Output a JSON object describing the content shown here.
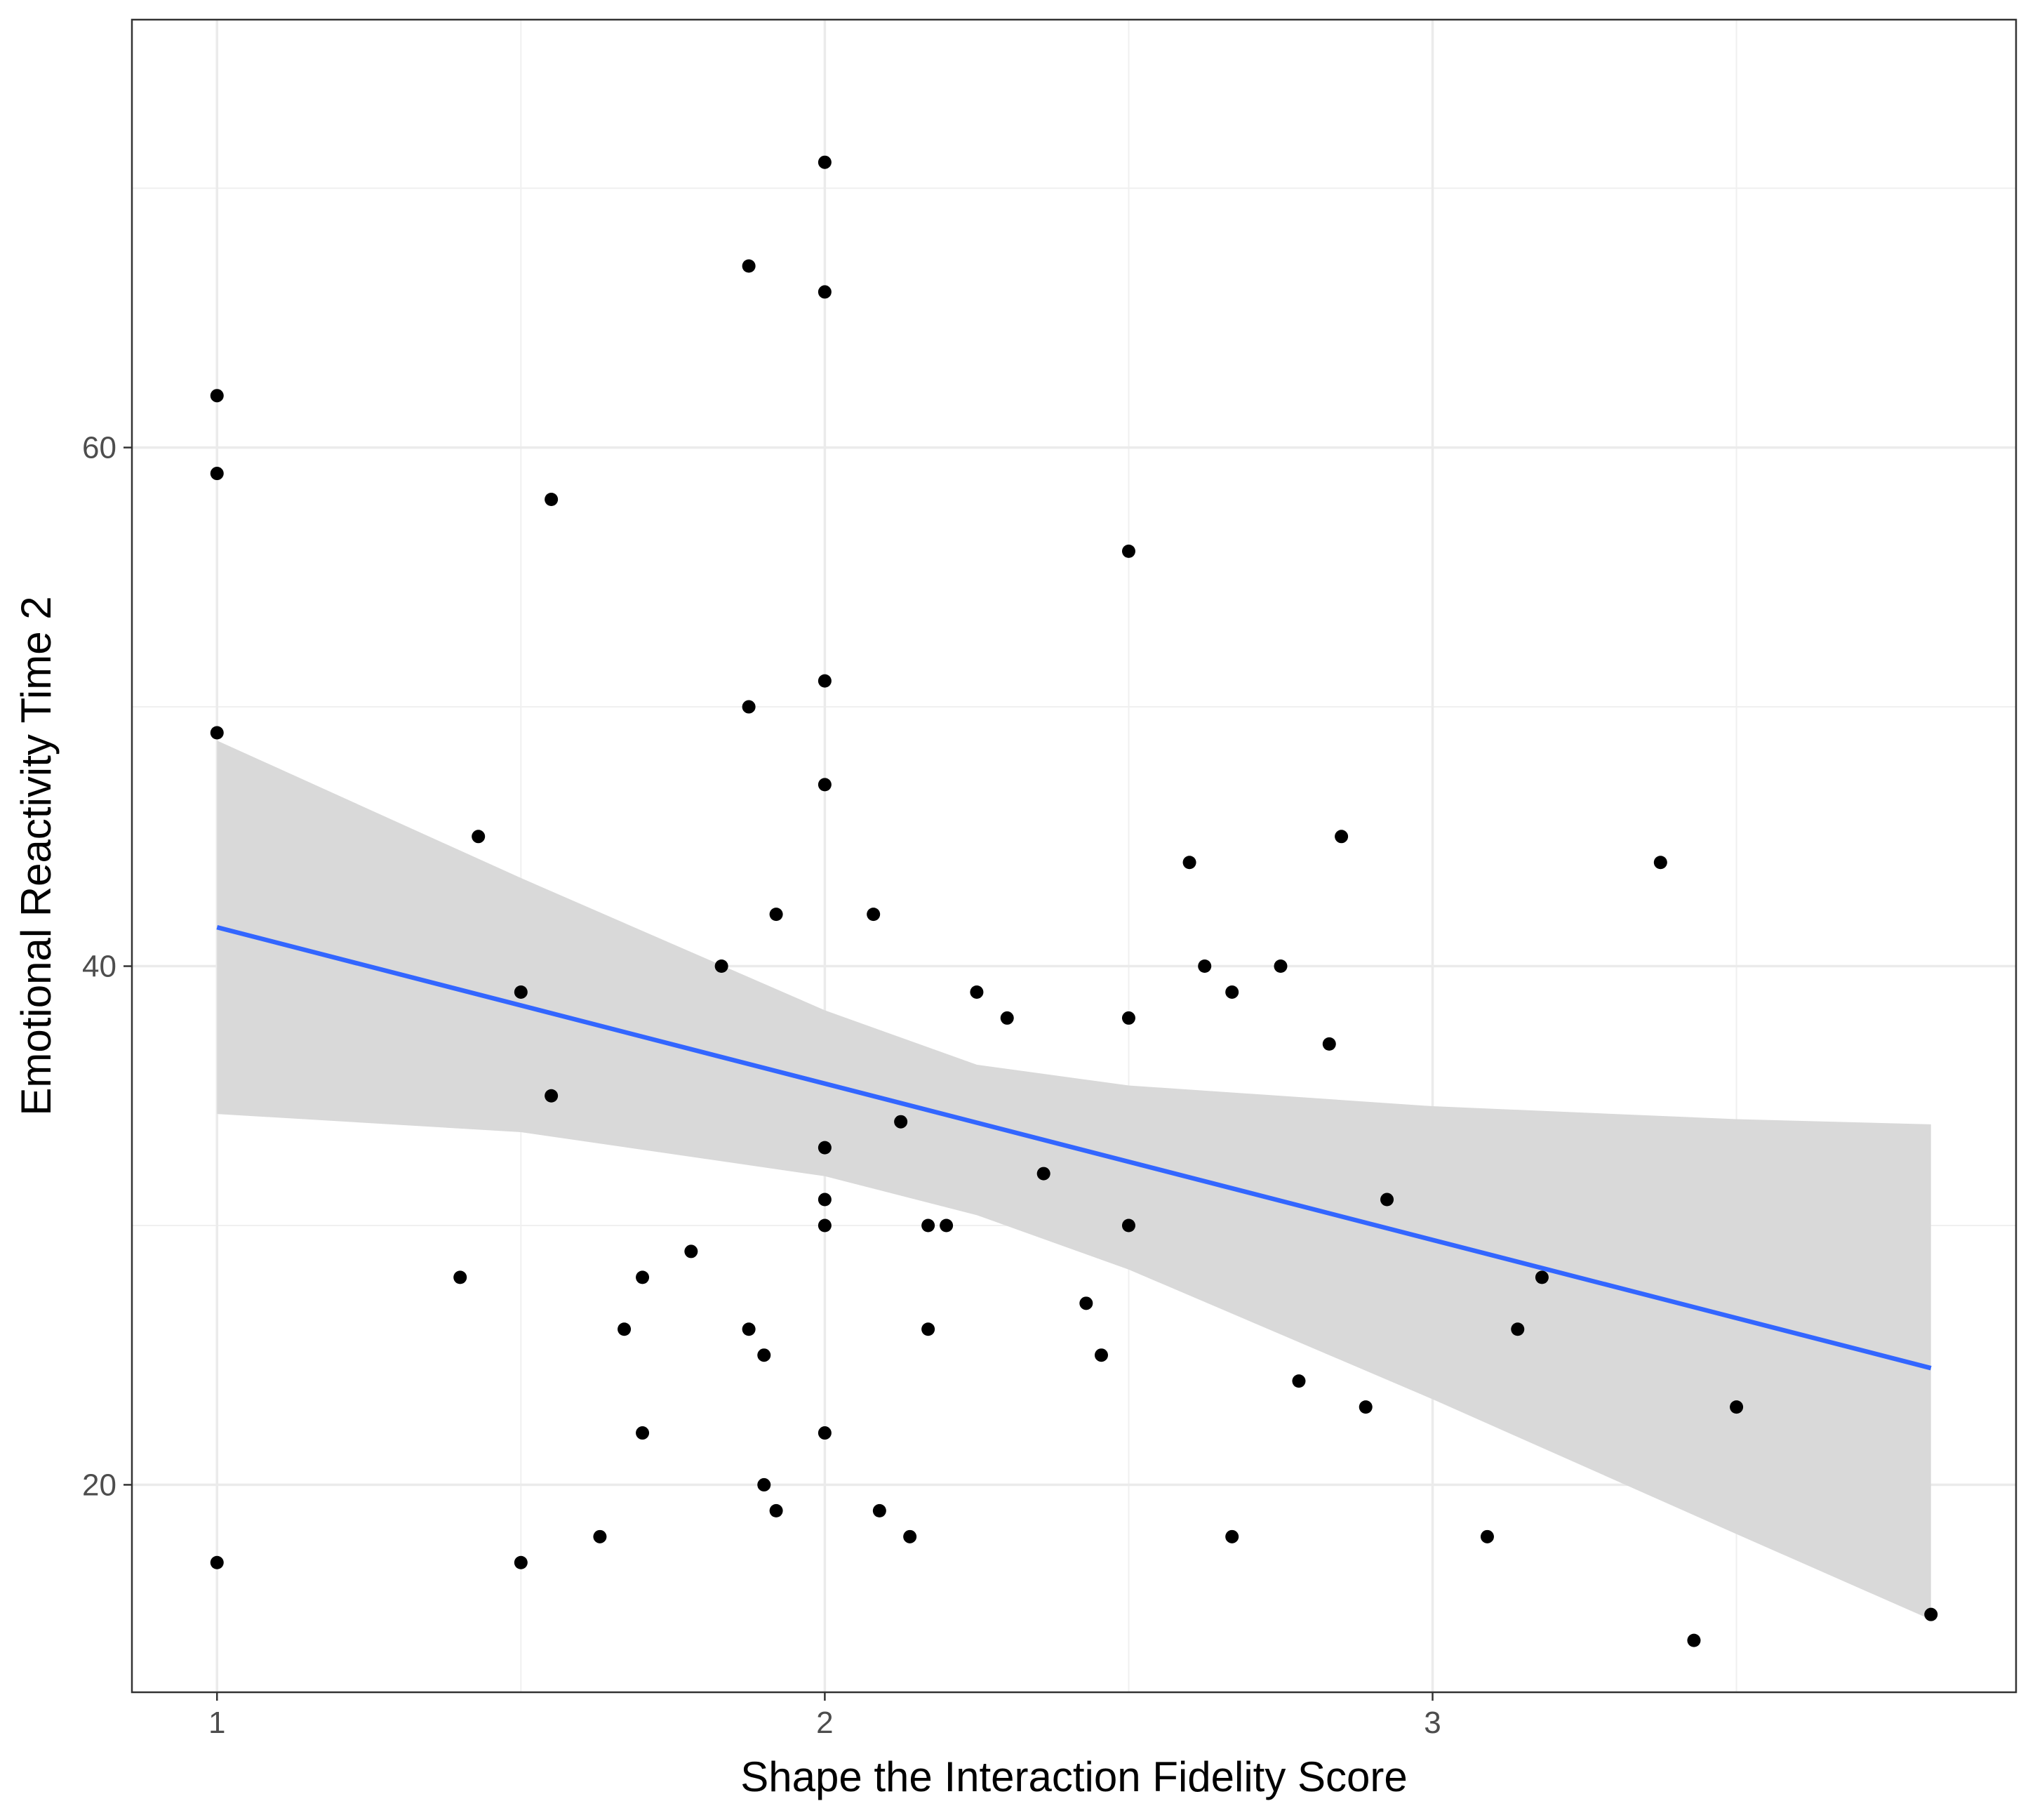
{
  "chart_data": {
    "type": "scatter",
    "title": "",
    "xlabel": "Shape the Interaction Fidelity Score",
    "ylabel": "Emotional Reactivity Time 2",
    "xlim": [
      0.86,
      3.96
    ],
    "ylim": [
      12,
      76.5
    ],
    "x_ticks": [
      1,
      2,
      3
    ],
    "x_tick_labels": [
      "1",
      "2",
      "3"
    ],
    "y_ticks": [
      20,
      40,
      60
    ],
    "y_tick_labels": [
      "20",
      "40",
      "60"
    ],
    "grid": true,
    "points": [
      {
        "x": 1.0,
        "y": 62
      },
      {
        "x": 1.0,
        "y": 59
      },
      {
        "x": 1.0,
        "y": 49
      },
      {
        "x": 1.0,
        "y": 17
      },
      {
        "x": 1.4,
        "y": 28
      },
      {
        "x": 1.43,
        "y": 45
      },
      {
        "x": 1.5,
        "y": 39
      },
      {
        "x": 1.5,
        "y": 17
      },
      {
        "x": 1.55,
        "y": 58
      },
      {
        "x": 1.55,
        "y": 35
      },
      {
        "x": 1.63,
        "y": 18
      },
      {
        "x": 1.67,
        "y": 26
      },
      {
        "x": 1.7,
        "y": 28
      },
      {
        "x": 1.7,
        "y": 22
      },
      {
        "x": 1.78,
        "y": 29
      },
      {
        "x": 1.83,
        "y": 40
      },
      {
        "x": 1.875,
        "y": 67
      },
      {
        "x": 1.875,
        "y": 50
      },
      {
        "x": 1.875,
        "y": 26
      },
      {
        "x": 1.9,
        "y": 25
      },
      {
        "x": 1.9,
        "y": 20
      },
      {
        "x": 1.92,
        "y": 42
      },
      {
        "x": 1.92,
        "y": 19
      },
      {
        "x": 2.0,
        "y": 71
      },
      {
        "x": 2.0,
        "y": 66
      },
      {
        "x": 2.0,
        "y": 51
      },
      {
        "x": 2.0,
        "y": 47
      },
      {
        "x": 2.0,
        "y": 33
      },
      {
        "x": 2.0,
        "y": 31
      },
      {
        "x": 2.0,
        "y": 30
      },
      {
        "x": 2.0,
        "y": 22
      },
      {
        "x": 2.08,
        "y": 42
      },
      {
        "x": 2.09,
        "y": 19
      },
      {
        "x": 2.125,
        "y": 34
      },
      {
        "x": 2.14,
        "y": 18
      },
      {
        "x": 2.17,
        "y": 30
      },
      {
        "x": 2.17,
        "y": 26
      },
      {
        "x": 2.2,
        "y": 30
      },
      {
        "x": 2.25,
        "y": 39
      },
      {
        "x": 2.3,
        "y": 38
      },
      {
        "x": 2.36,
        "y": 32
      },
      {
        "x": 2.43,
        "y": 27
      },
      {
        "x": 2.455,
        "y": 25
      },
      {
        "x": 2.5,
        "y": 56
      },
      {
        "x": 2.5,
        "y": 38
      },
      {
        "x": 2.5,
        "y": 30
      },
      {
        "x": 2.6,
        "y": 44
      },
      {
        "x": 2.625,
        "y": 40
      },
      {
        "x": 2.67,
        "y": 39
      },
      {
        "x": 2.67,
        "y": 18
      },
      {
        "x": 2.75,
        "y": 40
      },
      {
        "x": 2.78,
        "y": 24
      },
      {
        "x": 2.83,
        "y": 37
      },
      {
        "x": 2.85,
        "y": 45
      },
      {
        "x": 2.89,
        "y": 23
      },
      {
        "x": 2.925,
        "y": 31
      },
      {
        "x": 3.09,
        "y": 18
      },
      {
        "x": 3.14,
        "y": 26
      },
      {
        "x": 3.18,
        "y": 28
      },
      {
        "x": 3.375,
        "y": 44
      },
      {
        "x": 3.43,
        "y": 14
      },
      {
        "x": 3.5,
        "y": 23
      },
      {
        "x": 3.82,
        "y": 15
      }
    ],
    "fit_line": {
      "method": "linear regression",
      "color": "#3366FF",
      "x": [
        1.0,
        3.82
      ],
      "y": [
        41.5,
        24.5
      ]
    },
    "confidence_band": {
      "color": "#D9D9D9",
      "x": [
        1.0,
        1.5,
        2.0,
        2.25,
        2.5,
        3.0,
        3.5,
        3.82
      ],
      "lower": [
        34.3,
        33.6,
        31.9,
        30.4,
        28.3,
        23.3,
        18.1,
        14.8
      ],
      "upper": [
        48.7,
        43.4,
        38.3,
        36.2,
        35.4,
        34.6,
        34.1,
        33.9
      ]
    },
    "point_color": "#000000"
  }
}
